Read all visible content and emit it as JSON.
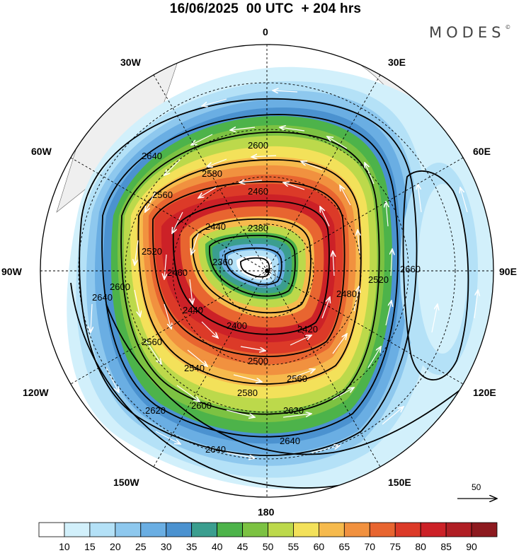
{
  "header": {
    "title": "16/06/2025  00 UTC  + 204 hrs",
    "brand": "MODES",
    "brand_mark": "©"
  },
  "map": {
    "projection": "south polar stereographic",
    "longitude_labels": [
      "0",
      "30E",
      "60E",
      "90E",
      "120E",
      "150E",
      "180",
      "150W",
      "120W",
      "90W",
      "60W",
      "30W"
    ],
    "contour_labels": [
      "2640",
      "2600",
      "2580",
      "2560",
      "2540",
      "2500",
      "2460",
      "2440",
      "2420",
      "2400",
      "2380",
      "2360",
      "2620",
      "2660",
      "2480",
      "2520"
    ],
    "contour_interval_units": "gpm",
    "wind_vectors": "white arrows, anticlockwise circulation"
  },
  "vector_key": {
    "label": "50"
  },
  "colorbar": {
    "ticks": [
      "10",
      "15",
      "20",
      "25",
      "30",
      "35",
      "40",
      "45",
      "50",
      "55",
      "60",
      "65",
      "70",
      "75",
      "80",
      "85",
      "90"
    ],
    "colors": [
      "#ffffff",
      "#d2f0fb",
      "#b4e1f7",
      "#8ec8ee",
      "#6aaee3",
      "#4b92d0",
      "#3b9e8f",
      "#4db34a",
      "#7cc242",
      "#bcd94b",
      "#f3e15a",
      "#f6ba4d",
      "#f1913f",
      "#e86530",
      "#dc3a28",
      "#cc2127",
      "#b01e24",
      "#8d1a1f"
    ]
  }
}
